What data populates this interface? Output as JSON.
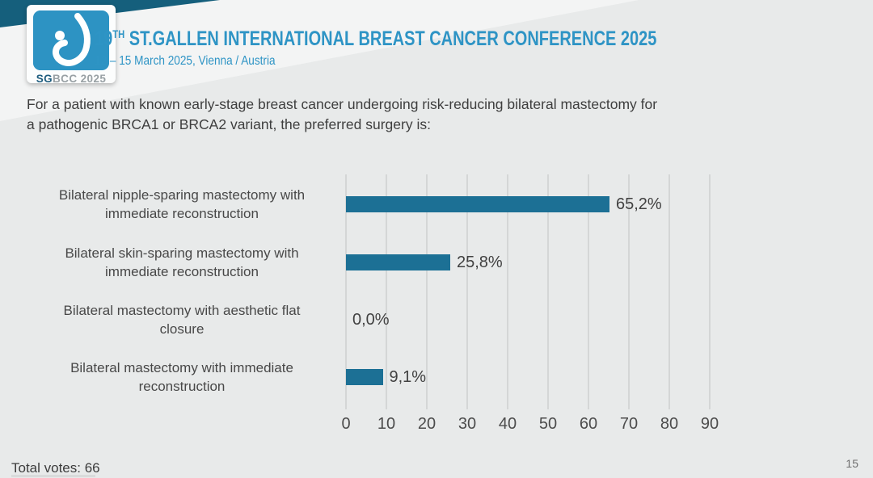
{
  "header": {
    "title_num": "19",
    "title_sup": "TH",
    "title_rest": " ST.GALLEN INTERNATIONAL BREAST CANCER CONFERENCE 2025",
    "subtitle": "12 – 15 March 2025, Vienna / Austria",
    "logo_sg": "SG",
    "logo_rest": "BCC 2025"
  },
  "question": {
    "line1": "For a patient with known early-stage breast cancer undergoing risk-reducing bilateral mastectomy for",
    "line2": "a pathogenic BRCA1 or BRCA2 variant, the preferred surgery is:"
  },
  "chart_data": {
    "type": "bar",
    "orientation": "horizontal",
    "title": "",
    "categories": [
      "Bilateral nipple-sparing mastectomy with immediate reconstruction",
      "Bilateral skin-sparing mastectomy with immediate reconstruction",
      "Bilateral mastectomy with aesthetic flat closure",
      "Bilateral mastectomy with immediate reconstruction"
    ],
    "values": [
      65.2,
      25.8,
      0.0,
      9.1
    ],
    "value_labels": [
      "65,2%",
      "25,8%",
      "0,0%",
      "9,1%"
    ],
    "rows": [
      {
        "line1": "Bilateral nipple-sparing mastectomy with",
        "line2": "immediate reconstruction"
      },
      {
        "line1": "Bilateral skin-sparing mastectomy with",
        "line2": "immediate reconstruction"
      },
      {
        "line1": "Bilateral mastectomy with aesthetic flat",
        "line2": "closure"
      },
      {
        "line1": "Bilateral mastectomy with immediate",
        "line2": "reconstruction"
      }
    ],
    "x_ticks": [
      "0",
      "10",
      "20",
      "30",
      "40",
      "50",
      "60",
      "70",
      "80",
      "90"
    ],
    "xlim": [
      0,
      95
    ],
    "grid": true,
    "legend": "none",
    "bar_color": "#1c7095"
  },
  "footer": {
    "total_votes": "Total votes: 66",
    "page_number": "15"
  },
  "colors": {
    "accent_blue": "#2e94c5",
    "dark_teal_ribbon": "#155f7c",
    "bar_teal": "#1c7095",
    "background_gray": "#e8eaea"
  }
}
